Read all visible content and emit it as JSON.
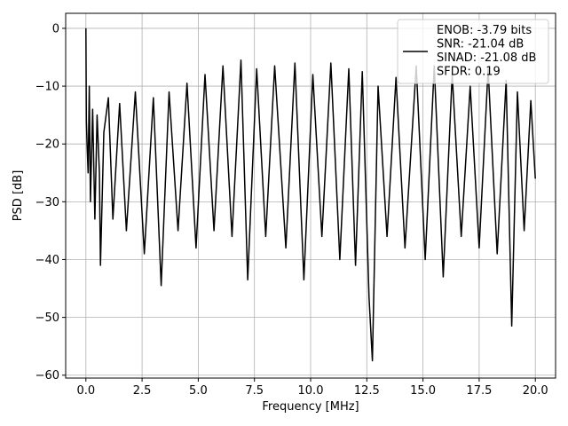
{
  "chart_data": {
    "type": "line",
    "xlabel": "Frequency [MHz]",
    "ylabel": "PSD [dB]",
    "xlim": [
      -0.9,
      20.9
    ],
    "ylim": [
      -60.5,
      2.6
    ],
    "x_ticks": [
      0.0,
      2.5,
      5.0,
      7.5,
      10.0,
      12.5,
      15.0,
      17.5,
      20.0
    ],
    "x_tick_labels": [
      "0.0",
      "2.5",
      "5.0",
      "7.5",
      "10.0",
      "12.5",
      "15.0",
      "17.5",
      "20.0"
    ],
    "y_ticks": [
      0,
      -10,
      -20,
      -30,
      -40,
      -50,
      -60
    ],
    "y_tick_labels": [
      "0",
      "−10",
      "−20",
      "−30",
      "−40",
      "−50",
      "−60"
    ],
    "grid": true,
    "legend_position": "top-right",
    "series": [
      {
        "name": "ENOB: -3.79 bits\nSNR: -21.04 dB\nSINAD: -21.08 dB\nSFDR: 0.19",
        "color": "#000000",
        "x": [
          0.0,
          0.02,
          0.05,
          0.1,
          0.15,
          0.2,
          0.3,
          0.4,
          0.5,
          0.6,
          0.65,
          0.8,
          1.0,
          1.2,
          1.5,
          1.8,
          2.2,
          2.6,
          3.0,
          3.35,
          3.7,
          4.1,
          4.5,
          4.9,
          5.3,
          5.7,
          6.1,
          6.5,
          6.9,
          7.2,
          7.6,
          8.0,
          8.4,
          8.9,
          9.3,
          9.7,
          10.1,
          10.5,
          10.9,
          11.3,
          11.7,
          12.0,
          12.3,
          12.6,
          12.75,
          13.0,
          13.4,
          13.8,
          14.2,
          14.7,
          15.1,
          15.5,
          15.9,
          16.3,
          16.7,
          17.1,
          17.5,
          17.9,
          18.3,
          18.7,
          18.95,
          19.2,
          19.5,
          19.8,
          20.0
        ],
        "y": [
          0.0,
          -16.0,
          -20.0,
          -25.0,
          -10.0,
          -30.0,
          -14.0,
          -33.0,
          -15.0,
          -25.0,
          -41.0,
          -18.0,
          -12.0,
          -33.0,
          -13.0,
          -35.0,
          -11.0,
          -39.0,
          -12.0,
          -44.5,
          -11.0,
          -35.0,
          -9.5,
          -38.0,
          -8.0,
          -35.0,
          -6.5,
          -36.0,
          -5.5,
          -43.5,
          -7.0,
          -36.0,
          -6.5,
          -38.0,
          -6.0,
          -43.5,
          -8.0,
          -36.0,
          -6.0,
          -40.0,
          -7.0,
          -41.0,
          -7.5,
          -46.5,
          -57.5,
          -10.0,
          -36.0,
          -8.5,
          -38.0,
          -6.5,
          -40.0,
          -6.5,
          -43.0,
          -8.0,
          -36.0,
          -10.0,
          -38.0,
          -7.0,
          -39.0,
          -9.0,
          -51.5,
          -11.0,
          -35.0,
          -12.5,
          -26.0
        ]
      }
    ]
  }
}
